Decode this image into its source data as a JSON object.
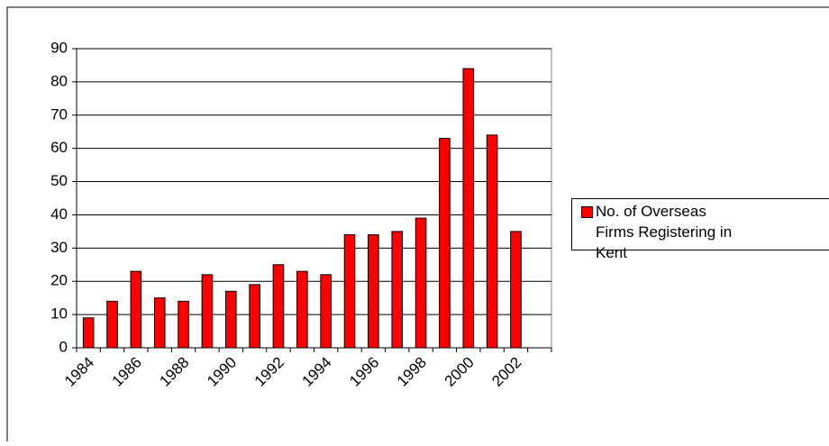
{
  "chart_data": {
    "type": "bar",
    "categories": [
      "1984",
      null,
      "1986",
      null,
      "1988",
      null,
      "1990",
      null,
      "1992",
      null,
      "1994",
      null,
      "1996",
      null,
      "1998",
      null,
      "2000",
      null,
      "2002",
      null
    ],
    "series": [
      {
        "name": "No. of Overseas Firms Registering in Kent",
        "color": "#ff0000",
        "values": [
          9,
          14,
          23,
          15,
          14,
          22,
          17,
          19,
          25,
          23,
          22,
          34,
          34,
          35,
          39,
          63,
          84,
          64,
          35,
          null
        ]
      }
    ],
    "ylim": [
      0,
      90
    ],
    "yticks": [
      0,
      10,
      20,
      30,
      40,
      50,
      60,
      70,
      80,
      90
    ],
    "grid": true,
    "legend": "right"
  }
}
